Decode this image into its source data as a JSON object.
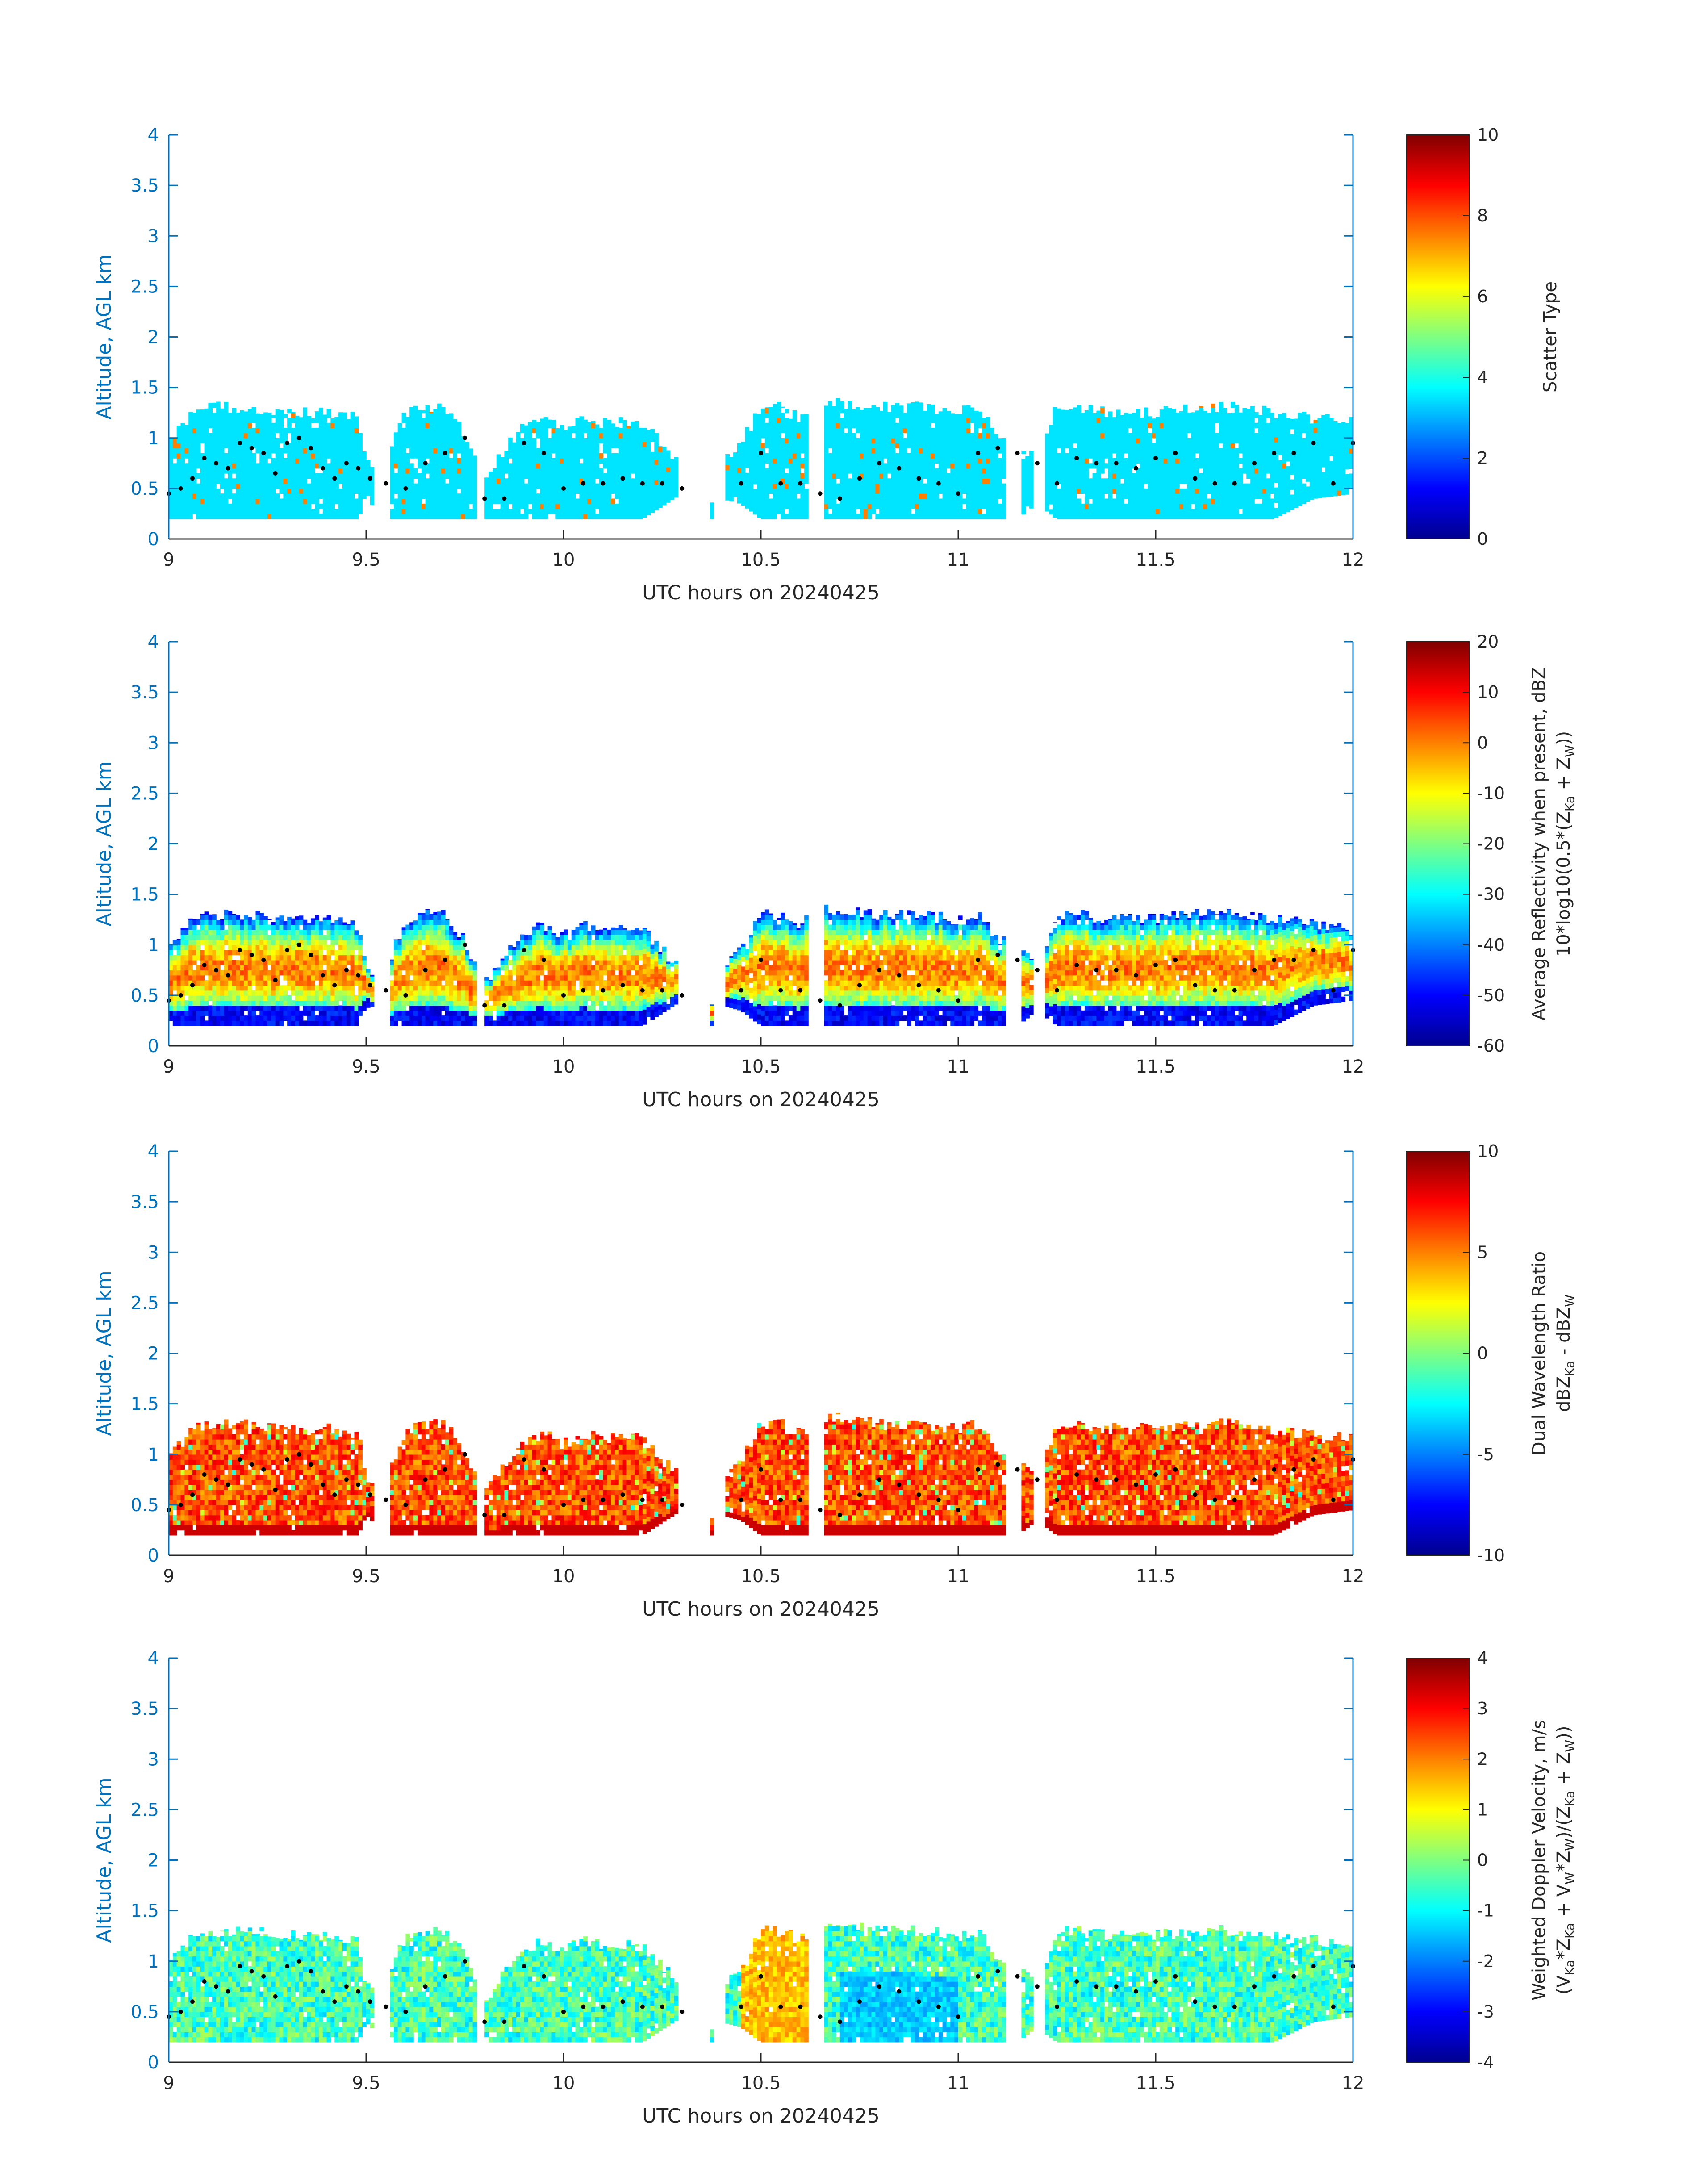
{
  "figure": {
    "colormap": "jet",
    "axis_color": "#0072BD",
    "text_color": "#262626",
    "dots_color": "#000000"
  },
  "chart_data": [
    {
      "type": "heatmap",
      "xlabel": "UTC hours on 20240425",
      "ylabel": "Altitude, AGL km",
      "xlim": [
        9,
        12
      ],
      "ylim": [
        0,
        4
      ],
      "xticks": [
        "9",
        "9.5",
        "10",
        "10.5",
        "11",
        "11.5",
        "12"
      ],
      "yticks": [
        "0",
        "0.5",
        "1",
        "1.5",
        "2",
        "2.5",
        "3",
        "3.5",
        "4"
      ],
      "colorbar": {
        "label": "Scatter Type",
        "label2": "",
        "ticks": [
          "0",
          "2",
          "4",
          "6",
          "8",
          "10"
        ],
        "clim": [
          0,
          10
        ]
      },
      "field": "scatter",
      "value_description": "mostly 3.5 (cyan) with scattered 7.5 (orange-red) cells"
    },
    {
      "type": "heatmap",
      "xlabel": "UTC hours on 20240425",
      "ylabel": "Altitude, AGL km",
      "xlim": [
        9,
        12
      ],
      "ylim": [
        0,
        4
      ],
      "xticks": [
        "9",
        "9.5",
        "10",
        "10.5",
        "11",
        "11.5",
        "12"
      ],
      "yticks": [
        "0",
        "0.5",
        "1",
        "1.5",
        "2",
        "2.5",
        "3",
        "3.5",
        "4"
      ],
      "colorbar": {
        "label": "Average Reflectivity when present, dBZ",
        "label2": "10*log10(0.5*(Z",
        "label2_sub1": "Ka",
        "label2_mid": " + Z",
        "label2_sub2": "W",
        "label2_end": "))",
        "ticks": [
          "-60",
          "-50",
          "-40",
          "-30",
          "-20",
          "-10",
          "0",
          "10",
          "20"
        ],
        "clim": [
          -60,
          20
        ]
      },
      "field": "reflectivity"
    },
    {
      "type": "heatmap",
      "xlabel": "UTC hours on 20240425",
      "ylabel": "Altitude, AGL km",
      "xlim": [
        9,
        12
      ],
      "ylim": [
        0,
        4
      ],
      "xticks": [
        "9",
        "9.5",
        "10",
        "10.5",
        "11",
        "11.5",
        "12"
      ],
      "yticks": [
        "0",
        "0.5",
        "1",
        "1.5",
        "2",
        "2.5",
        "3",
        "3.5",
        "4"
      ],
      "colorbar": {
        "label": "Dual Wavelength Ratio",
        "label2": "dBZ",
        "label2_sub1": "Ka",
        "label2_mid": " - dBZ",
        "label2_sub2": "W",
        "label2_end": "",
        "ticks": [
          "-10",
          "-5",
          "0",
          "5",
          "10"
        ],
        "clim": [
          -10,
          10
        ]
      },
      "field": "dwr"
    },
    {
      "type": "heatmap",
      "xlabel": "UTC hours on 20240425",
      "ylabel": "Altitude, AGL km",
      "xlim": [
        9,
        12
      ],
      "ylim": [
        0,
        4
      ],
      "xticks": [
        "9",
        "9.5",
        "10",
        "10.5",
        "11",
        "11.5",
        "12"
      ],
      "yticks": [
        "0",
        "0.5",
        "1",
        "1.5",
        "2",
        "2.5",
        "3",
        "3.5",
        "4"
      ],
      "colorbar": {
        "label": "Weighted Doppler Velocity, m/s",
        "label2": "(V",
        "label2_sub1": "Ka",
        "label2_mid": "*Z",
        "label2_sub2": "Ka",
        "label2_end": " + V",
        "label2_sub3": "W",
        "label2_end2": "*Z",
        "label2_sub4": "W",
        "label2_end3": ")/(Z",
        "label2_sub5": "Ka",
        "label2_end4": " + Z",
        "label2_sub6": "W",
        "label2_end5": "))",
        "ticks": [
          "-4",
          "-3",
          "-2",
          "-1",
          "0",
          "1",
          "2",
          "3",
          "4"
        ],
        "clim": [
          -4,
          4
        ]
      },
      "field": "velocity"
    }
  ],
  "cloud_profile": {
    "hour": [
      9.0,
      9.06,
      9.1,
      9.2,
      9.3,
      9.4,
      9.48,
      9.5,
      9.55,
      9.6,
      9.65,
      9.7,
      9.75,
      9.8,
      9.85,
      9.9,
      9.95,
      10.0,
      10.05,
      10.1,
      10.2,
      10.3,
      10.35,
      10.4,
      10.45,
      10.5,
      10.55,
      10.6,
      10.65,
      10.7,
      10.8,
      10.9,
      11.0,
      11.05,
      11.1,
      11.15,
      11.2,
      11.25,
      11.3,
      11.4,
      11.5,
      11.6,
      11.7,
      11.8,
      11.9,
      12.0
    ],
    "top_km": [
      0.95,
      1.25,
      1.3,
      1.3,
      1.25,
      1.25,
      1.2,
      0.75,
      0.75,
      1.25,
      1.3,
      1.3,
      1.05,
      0.6,
      0.9,
      1.1,
      1.2,
      1.1,
      1.2,
      1.15,
      1.15,
      0.75,
      0.0,
      0.75,
      0.95,
      1.3,
      1.3,
      1.2,
      1.35,
      1.35,
      1.3,
      1.3,
      1.25,
      1.3,
      1.05,
      1.0,
      0.75,
      1.3,
      1.3,
      1.25,
      1.25,
      1.3,
      1.3,
      1.25,
      1.2,
      1.15
    ],
    "base_km": [
      0.2,
      0.2,
      0.2,
      0.2,
      0.2,
      0.2,
      0.2,
      0.4,
      0.2,
      0.2,
      0.2,
      0.2,
      0.2,
      0.2,
      0.2,
      0.2,
      0.2,
      0.2,
      0.2,
      0.2,
      0.2,
      0.45,
      0.0,
      0.4,
      0.35,
      0.2,
      0.2,
      0.2,
      0.2,
      0.2,
      0.2,
      0.2,
      0.2,
      0.2,
      0.2,
      0.2,
      0.35,
      0.2,
      0.2,
      0.2,
      0.2,
      0.2,
      0.2,
      0.2,
      0.4,
      0.45
    ],
    "gaps_hours": [
      [
        9.52,
        9.56
      ],
      [
        9.78,
        9.8
      ],
      [
        10.29,
        10.37
      ],
      [
        10.38,
        10.41
      ],
      [
        10.62,
        10.66
      ],
      [
        11.12,
        11.16
      ],
      [
        11.19,
        11.22
      ]
    ],
    "dot_hours": [
      9.0,
      9.03,
      9.06,
      9.09,
      9.12,
      9.15,
      9.18,
      9.21,
      9.24,
      9.27,
      9.3,
      9.33,
      9.36,
      9.39,
      9.42,
      9.45,
      9.48,
      9.51,
      9.55,
      9.6,
      9.65,
      9.7,
      9.75,
      9.8,
      9.85,
      9.9,
      9.95,
      10.0,
      10.05,
      10.1,
      10.15,
      10.2,
      10.25,
      10.3,
      10.45,
      10.5,
      10.55,
      10.6,
      10.65,
      10.7,
      10.75,
      10.8,
      10.85,
      10.9,
      10.95,
      11.0,
      11.05,
      11.1,
      11.15,
      11.2,
      11.25,
      11.3,
      11.35,
      11.4,
      11.45,
      11.5,
      11.55,
      11.6,
      11.65,
      11.7,
      11.75,
      11.8,
      11.85,
      11.9,
      11.95,
      12.0
    ],
    "dot_km": [
      0.45,
      0.5,
      0.6,
      0.8,
      0.75,
      0.7,
      0.95,
      0.9,
      0.85,
      0.65,
      0.95,
      1.0,
      0.9,
      0.7,
      0.6,
      0.75,
      0.7,
      0.6,
      0.55,
      0.5,
      0.75,
      0.85,
      1.0,
      0.4,
      0.4,
      0.95,
      0.85,
      0.5,
      0.55,
      0.55,
      0.6,
      0.55,
      0.55,
      0.5,
      0.55,
      0.85,
      0.55,
      0.55,
      0.45,
      0.4,
      0.6,
      0.75,
      0.7,
      0.6,
      0.55,
      0.45,
      0.85,
      0.9,
      0.85,
      0.75,
      0.55,
      0.8,
      0.75,
      0.75,
      0.7,
      0.8,
      0.85,
      0.6,
      0.55,
      0.55,
      0.75,
      0.85,
      0.85,
      0.95,
      0.55,
      0.95
    ]
  }
}
